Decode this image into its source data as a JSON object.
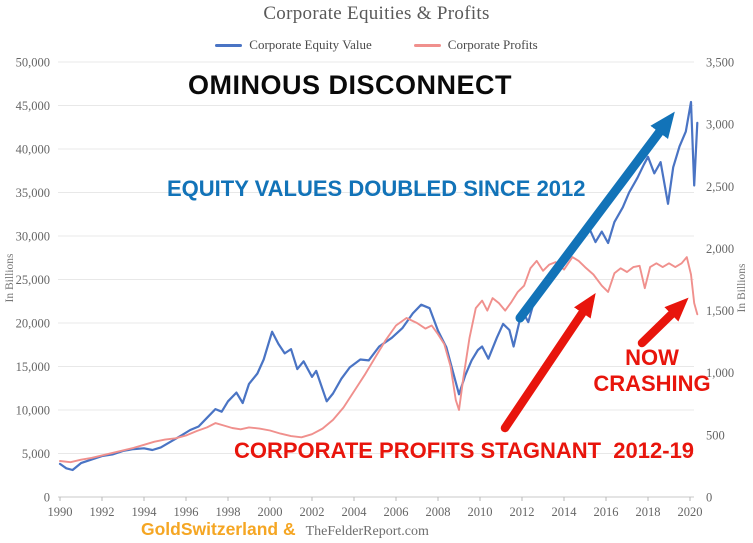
{
  "header": {
    "title": "Corporate Equities & Profits",
    "legend": [
      {
        "label": "Corporate Equity Value",
        "color": "#4a74c4"
      },
      {
        "label": "Corporate Profits",
        "color": "#f0908d"
      }
    ]
  },
  "annotations": {
    "headline": "OMINOUS DISCONNECT",
    "equity_note": "EQUITY VALUES DOUBLED SINCE 2012",
    "crash_note": [
      "NOW",
      "CRASHING"
    ],
    "profits_note": "CORPORATE PROFITS STAGNANT  2012-19",
    "blue_color": "#1273b8",
    "red_color": "#e8150c"
  },
  "footer": {
    "brand": "GoldSwitzerland &",
    "brand_color": "#f5a623",
    "site": "TheFelderReport.com"
  },
  "chart_data": {
    "type": "line",
    "title": "Corporate Equities & Profits",
    "x_range": [
      1990,
      2020
    ],
    "x_ticks": [
      1990,
      1992,
      1994,
      1996,
      1998,
      2000,
      2002,
      2004,
      2006,
      2008,
      2010,
      2012,
      2014,
      2016,
      2018,
      2020
    ],
    "y_left": {
      "label": "In Billions",
      "range": [
        0,
        50000
      ],
      "tick_step": 5000
    },
    "y_right": {
      "label": "In Billions",
      "range": [
        0,
        3500
      ],
      "tick_step": 500
    },
    "grid": "horizontal",
    "legend_position": "top",
    "series": [
      {
        "name": "Corporate Equity Value",
        "axis": "left",
        "color": "#4a74c4",
        "points": [
          [
            1990.0,
            3800
          ],
          [
            1990.3,
            3300
          ],
          [
            1990.6,
            3100
          ],
          [
            1991.0,
            3900
          ],
          [
            1991.5,
            4300
          ],
          [
            1992.0,
            4700
          ],
          [
            1992.5,
            4900
          ],
          [
            1993.0,
            5300
          ],
          [
            1993.5,
            5500
          ],
          [
            1994.0,
            5600
          ],
          [
            1994.4,
            5400
          ],
          [
            1994.8,
            5700
          ],
          [
            1995.3,
            6400
          ],
          [
            1995.8,
            7100
          ],
          [
            1996.2,
            7700
          ],
          [
            1996.6,
            8100
          ],
          [
            1997.0,
            9100
          ],
          [
            1997.4,
            10100
          ],
          [
            1997.7,
            9800
          ],
          [
            1998.0,
            11000
          ],
          [
            1998.4,
            12000
          ],
          [
            1998.7,
            10800
          ],
          [
            1999.0,
            13000
          ],
          [
            1999.4,
            14200
          ],
          [
            1999.7,
            15800
          ],
          [
            2000.1,
            19000
          ],
          [
            2000.4,
            17600
          ],
          [
            2000.7,
            16500
          ],
          [
            2001.0,
            17000
          ],
          [
            2001.3,
            14700
          ],
          [
            2001.6,
            15600
          ],
          [
            2002.0,
            13800
          ],
          [
            2002.2,
            14500
          ],
          [
            2002.7,
            11000
          ],
          [
            2003.0,
            11900
          ],
          [
            2003.4,
            13600
          ],
          [
            2003.8,
            14900
          ],
          [
            2004.3,
            15800
          ],
          [
            2004.7,
            15700
          ],
          [
            2005.2,
            17300
          ],
          [
            2005.8,
            18300
          ],
          [
            2006.3,
            19400
          ],
          [
            2006.8,
            21100
          ],
          [
            2007.2,
            22100
          ],
          [
            2007.6,
            21700
          ],
          [
            2008.0,
            19100
          ],
          [
            2008.4,
            17200
          ],
          [
            2008.7,
            14500
          ],
          [
            2009.0,
            11800
          ],
          [
            2009.3,
            14000
          ],
          [
            2009.6,
            15700
          ],
          [
            2009.9,
            16900
          ],
          [
            2010.1,
            17300
          ],
          [
            2010.4,
            15900
          ],
          [
            2010.8,
            18300
          ],
          [
            2011.1,
            19900
          ],
          [
            2011.4,
            19200
          ],
          [
            2011.6,
            17300
          ],
          [
            2011.9,
            20400
          ],
          [
            2012.1,
            21000
          ],
          [
            2012.3,
            20100
          ],
          [
            2012.6,
            22700
          ],
          [
            2013.0,
            24400
          ],
          [
            2013.5,
            26200
          ],
          [
            2014.0,
            27700
          ],
          [
            2014.5,
            28700
          ],
          [
            2014.9,
            29800
          ],
          [
            2015.2,
            30900
          ],
          [
            2015.5,
            29300
          ],
          [
            2015.8,
            30500
          ],
          [
            2016.1,
            29200
          ],
          [
            2016.4,
            31600
          ],
          [
            2016.8,
            33300
          ],
          [
            2017.1,
            35000
          ],
          [
            2017.5,
            36700
          ],
          [
            2017.8,
            38200
          ],
          [
            2018.0,
            39100
          ],
          [
            2018.3,
            37200
          ],
          [
            2018.6,
            38500
          ],
          [
            2018.95,
            33700
          ],
          [
            2019.2,
            37900
          ],
          [
            2019.5,
            40300
          ],
          [
            2019.8,
            42000
          ],
          [
            2020.05,
            45400
          ],
          [
            2020.2,
            35800
          ],
          [
            2020.35,
            43000
          ]
        ]
      },
      {
        "name": "Corporate Profits",
        "axis": "right",
        "color": "#f0908d",
        "points": [
          [
            1990.0,
            290
          ],
          [
            1990.5,
            280
          ],
          [
            1991.0,
            300
          ],
          [
            1991.5,
            315
          ],
          [
            1992.0,
            335
          ],
          [
            1992.5,
            355
          ],
          [
            1993.0,
            375
          ],
          [
            1993.5,
            395
          ],
          [
            1994.0,
            420
          ],
          [
            1994.5,
            445
          ],
          [
            1995.0,
            462
          ],
          [
            1995.5,
            472
          ],
          [
            1996.0,
            495
          ],
          [
            1996.5,
            530
          ],
          [
            1997.0,
            560
          ],
          [
            1997.4,
            595
          ],
          [
            1997.8,
            575
          ],
          [
            1998.2,
            555
          ],
          [
            1998.6,
            545
          ],
          [
            1999.0,
            560
          ],
          [
            1999.5,
            550
          ],
          [
            2000.0,
            535
          ],
          [
            2000.5,
            510
          ],
          [
            2001.0,
            490
          ],
          [
            2001.5,
            480
          ],
          [
            2002.0,
            505
          ],
          [
            2002.5,
            550
          ],
          [
            2003.0,
            620
          ],
          [
            2003.5,
            720
          ],
          [
            2004.0,
            850
          ],
          [
            2004.5,
            980
          ],
          [
            2005.0,
            1120
          ],
          [
            2005.5,
            1260
          ],
          [
            2006.0,
            1380
          ],
          [
            2006.5,
            1440
          ],
          [
            2007.0,
            1400
          ],
          [
            2007.4,
            1355
          ],
          [
            2007.7,
            1380
          ],
          [
            2008.0,
            1310
          ],
          [
            2008.3,
            1230
          ],
          [
            2008.6,
            1050
          ],
          [
            2008.85,
            780
          ],
          [
            2009.0,
            700
          ],
          [
            2009.2,
            950
          ],
          [
            2009.5,
            1280
          ],
          [
            2009.8,
            1520
          ],
          [
            2010.1,
            1580
          ],
          [
            2010.35,
            1500
          ],
          [
            2010.6,
            1600
          ],
          [
            2010.9,
            1560
          ],
          [
            2011.2,
            1500
          ],
          [
            2011.5,
            1570
          ],
          [
            2011.8,
            1650
          ],
          [
            2012.1,
            1700
          ],
          [
            2012.4,
            1840
          ],
          [
            2012.7,
            1900
          ],
          [
            2013.0,
            1820
          ],
          [
            2013.3,
            1870
          ],
          [
            2013.6,
            1890
          ],
          [
            2014.0,
            1830
          ],
          [
            2014.4,
            1930
          ],
          [
            2014.7,
            1900
          ],
          [
            2015.0,
            1850
          ],
          [
            2015.4,
            1790
          ],
          [
            2015.8,
            1700
          ],
          [
            2016.1,
            1650
          ],
          [
            2016.4,
            1800
          ],
          [
            2016.7,
            1840
          ],
          [
            2017.0,
            1810
          ],
          [
            2017.3,
            1850
          ],
          [
            2017.6,
            1860
          ],
          [
            2017.85,
            1680
          ],
          [
            2018.1,
            1850
          ],
          [
            2018.4,
            1880
          ],
          [
            2018.7,
            1850
          ],
          [
            2019.0,
            1880
          ],
          [
            2019.3,
            1850
          ],
          [
            2019.6,
            1880
          ],
          [
            2019.85,
            1930
          ],
          [
            2020.05,
            1790
          ],
          [
            2020.2,
            1560
          ],
          [
            2020.35,
            1470
          ]
        ]
      }
    ]
  }
}
